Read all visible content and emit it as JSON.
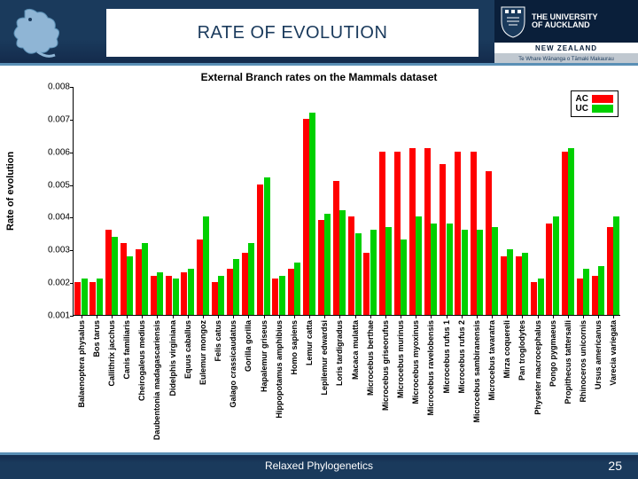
{
  "header": {
    "title": "RATE OF EVOLUTION",
    "title_fontsize": 20,
    "title_color": "#1a3a5c",
    "university_name_line1": "THE UNIVERSITY",
    "university_name_line2": "OF AUCKLAND",
    "university_mid": "NEW ZEALAND",
    "university_bottom": "Te Whare Wānanga o Tāmaki Makaurau",
    "bg_gradient_top": "#1a3a5c",
    "bg_gradient_bottom": "#13294a",
    "accent_line": "#5a8fb5"
  },
  "footer": {
    "label": "Relaxed Phylogenetics",
    "page": "25"
  },
  "chart": {
    "type": "bar",
    "title": "External Branch rates on the Mammals dataset",
    "title_fontsize": 12,
    "ylabel": "Rate of evolution",
    "ylabel_fontsize": 11,
    "ylim": [
      0.001,
      0.008
    ],
    "yticks": [
      0.001,
      0.002,
      0.003,
      0.004,
      0.005,
      0.006,
      0.007,
      0.008
    ],
    "background_color": "#ffffff",
    "axis_color": "#000000",
    "bar_group_gap": 0.15,
    "categories": [
      "Balaenoptera physalus",
      "Bos tarus",
      "Callithrix jacchus",
      "Canis familiaris",
      "Cheirogaleus medius",
      "Daubentonia madagascariensis",
      "Didelphis virginiana",
      "Equus caballus",
      "Eulemur mongoz",
      "Felis catus",
      "Galago crassicaudatus",
      "Gorilla gorilla",
      "Hapalemur griseus",
      "Hippopotamus amphibius",
      "Homo sapiens",
      "Lemur catta",
      "Lepilemur edwardsi",
      "Loris tardigradus",
      "Macaca mulatta",
      "Microcebus berthae",
      "Microcebus griseorufus",
      "Microcebus murinus",
      "Microcebus myoxinus",
      "Microcebus ravelobensis",
      "Microcebus rufus 1",
      "Microcebus rufus 2",
      "Microcebus sambiranensis",
      "Microcebus tavaratra",
      "Mirza coquereli",
      "Pan troglodytes",
      "Physeter macrocephalus",
      "Pongo pygmaeus",
      "Propithecus tattersalli",
      "Rhinoceros unicornis",
      "Ursus americanus",
      "Varecia variegata"
    ],
    "series": [
      {
        "name": "AC",
        "color": "#ff0000",
        "values": [
          0.002,
          0.002,
          0.0036,
          0.0032,
          0.003,
          0.0022,
          0.0022,
          0.0023,
          0.0033,
          0.002,
          0.0024,
          0.0029,
          0.005,
          0.0021,
          0.0024,
          0.007,
          0.0039,
          0.0051,
          0.004,
          0.0029,
          0.006,
          0.006,
          0.0061,
          0.0061,
          0.0056,
          0.006,
          0.006,
          0.0054,
          0.0028,
          0.0028,
          0.002,
          0.0038,
          0.006,
          0.0021,
          0.0022,
          0.0037
        ]
      },
      {
        "name": "UC",
        "color": "#00d000",
        "values": [
          0.0021,
          0.0021,
          0.0034,
          0.0028,
          0.0032,
          0.0023,
          0.0021,
          0.0024,
          0.004,
          0.0022,
          0.0027,
          0.0032,
          0.0052,
          0.0022,
          0.0026,
          0.0072,
          0.0041,
          0.0042,
          0.0035,
          0.0036,
          0.0037,
          0.0033,
          0.004,
          0.0038,
          0.0038,
          0.0036,
          0.0036,
          0.0037,
          0.003,
          0.0029,
          0.0021,
          0.004,
          0.0061,
          0.0024,
          0.0025,
          0.004
        ]
      }
    ],
    "legend": {
      "position": "upper-right",
      "labels": [
        "AC",
        "UC"
      ]
    }
  }
}
